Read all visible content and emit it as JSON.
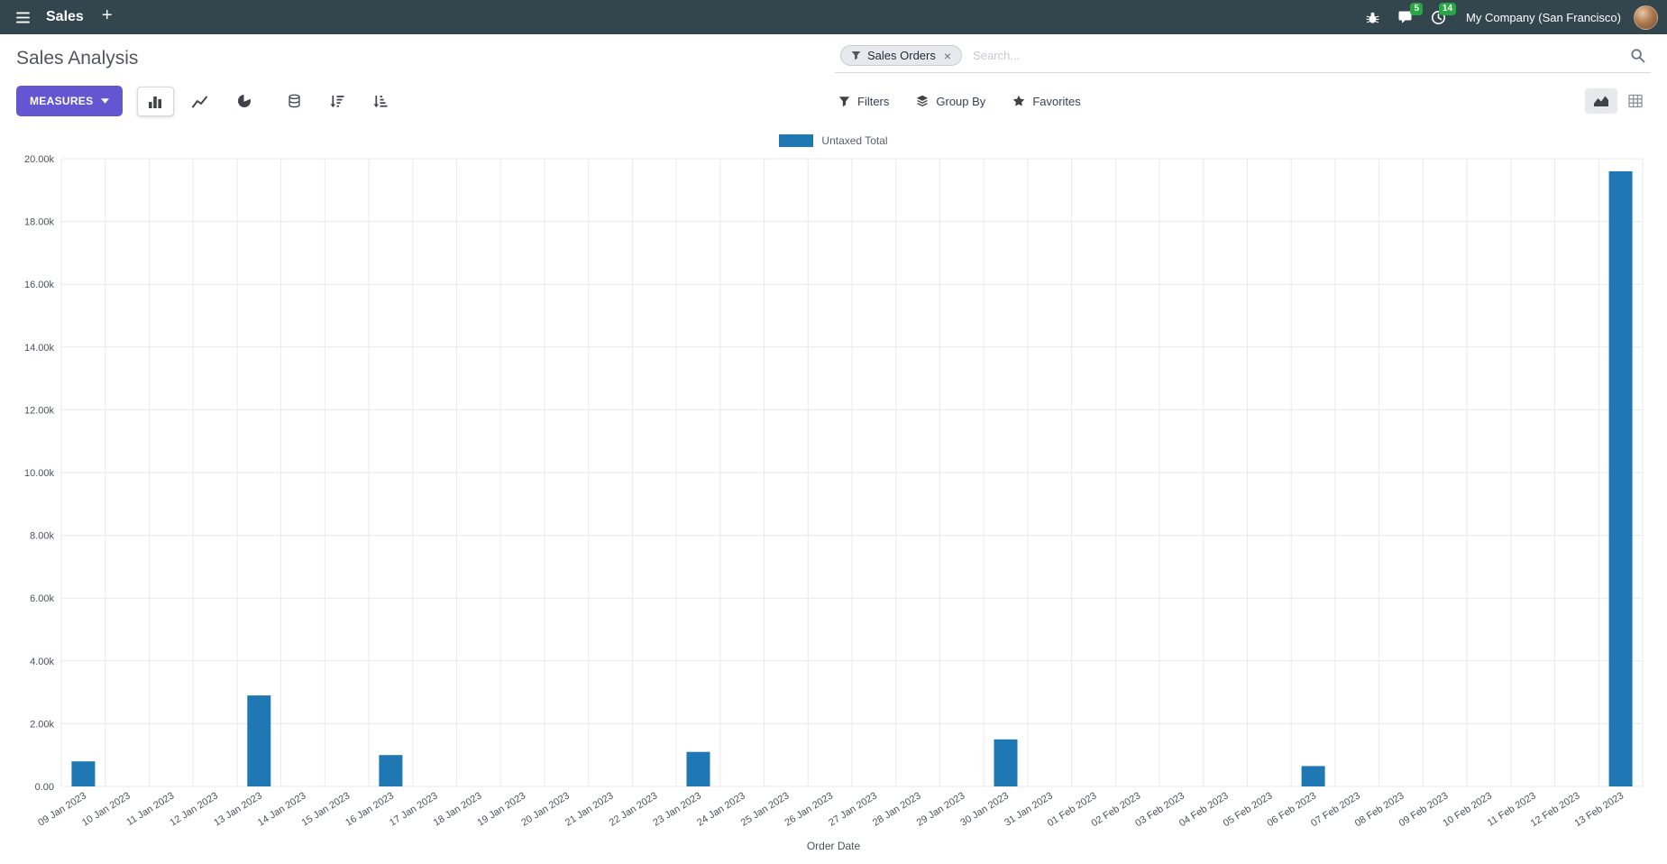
{
  "navbar": {
    "app_name": "Sales",
    "plus_label": "+",
    "messages_badge": "5",
    "activities_badge": "14",
    "company": "My Company (San Francisco)"
  },
  "control_panel": {
    "title": "Sales Analysis",
    "measures_label": "MEASURES",
    "filters_label": "Filters",
    "group_by_label": "Group By",
    "favorites_label": "Favorites",
    "search_facet": "Sales Orders",
    "facet_remove": "×",
    "search_placeholder": "Search..."
  },
  "colors": {
    "navbar_bg": "#33464d",
    "accent": "#6356d0",
    "badge_green": "#28a745",
    "bar_color": "#1f77b4"
  },
  "chart_data": {
    "type": "bar",
    "title": "",
    "legend_position": "top",
    "grid": true,
    "xlabel": "Order Date",
    "ylabel": "",
    "ylim": [
      0,
      20000
    ],
    "y_ticks": [
      "0.00",
      "2.00k",
      "4.00k",
      "6.00k",
      "8.00k",
      "10.00k",
      "12.00k",
      "14.00k",
      "16.00k",
      "18.00k",
      "20.00k"
    ],
    "categories": [
      "09 Jan 2023",
      "10 Jan 2023",
      "11 Jan 2023",
      "12 Jan 2023",
      "13 Jan 2023",
      "14 Jan 2023",
      "15 Jan 2023",
      "16 Jan 2023",
      "17 Jan 2023",
      "18 Jan 2023",
      "19 Jan 2023",
      "20 Jan 2023",
      "21 Jan 2023",
      "22 Jan 2023",
      "23 Jan 2023",
      "24 Jan 2023",
      "25 Jan 2023",
      "26 Jan 2023",
      "27 Jan 2023",
      "28 Jan 2023",
      "29 Jan 2023",
      "30 Jan 2023",
      "31 Jan 2023",
      "01 Feb 2023",
      "02 Feb 2023",
      "03 Feb 2023",
      "04 Feb 2023",
      "05 Feb 2023",
      "06 Feb 2023",
      "07 Feb 2023",
      "08 Feb 2023",
      "09 Feb 2023",
      "10 Feb 2023",
      "11 Feb 2023",
      "12 Feb 2023",
      "13 Feb 2023"
    ],
    "series": [
      {
        "name": "Untaxed Total",
        "color": "#1f77b4",
        "values": [
          800,
          0,
          0,
          0,
          2900,
          0,
          0,
          1000,
          0,
          0,
          0,
          0,
          0,
          0,
          1100,
          0,
          0,
          0,
          0,
          0,
          0,
          1500,
          0,
          0,
          0,
          0,
          0,
          0,
          650,
          0,
          0,
          0,
          0,
          0,
          0,
          19600
        ]
      }
    ]
  }
}
